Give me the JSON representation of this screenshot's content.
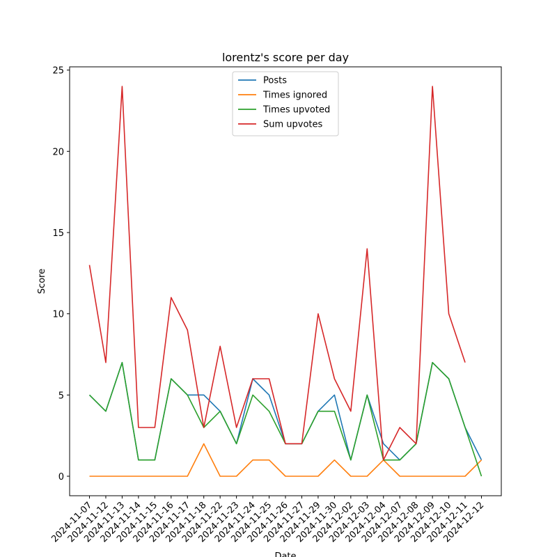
{
  "chart_data": {
    "type": "line",
    "title": "lorentz's score per day",
    "xlabel": "Date",
    "ylabel": "Score",
    "ylim": [
      -1.2,
      25.2
    ],
    "yticks": [
      0,
      5,
      10,
      15,
      20,
      25
    ],
    "grid": false,
    "legend_position": "upper center",
    "categories": [
      "2024-11-07",
      "2024-11-12",
      "2024-11-13",
      "2024-11-14",
      "2024-11-15",
      "2024-11-16",
      "2024-11-17",
      "2024-11-18",
      "2024-11-22",
      "2024-11-23",
      "2024-11-24",
      "2024-11-25",
      "2024-11-26",
      "2024-11-27",
      "2024-11-29",
      "2024-11-30",
      "2024-12-02",
      "2024-12-03",
      "2024-12-04",
      "2024-12-07",
      "2024-12-08",
      "2024-12-09",
      "2024-12-10",
      "2024-12-11",
      "2024-12-12"
    ],
    "series": [
      {
        "name": "Posts",
        "color": "#1f77b4",
        "values": [
          5,
          4,
          7,
          1,
          1,
          6,
          5,
          5,
          4,
          2,
          6,
          5,
          2,
          2,
          4,
          5,
          1,
          5,
          2,
          1,
          2,
          7,
          6,
          3,
          1
        ]
      },
      {
        "name": "Times ignored",
        "color": "#ff7f0e",
        "values": [
          0,
          0,
          0,
          0,
          0,
          0,
          0,
          2,
          0,
          0,
          1,
          1,
          0,
          0,
          0,
          1,
          0,
          0,
          1,
          0,
          0,
          0,
          0,
          0,
          1
        ]
      },
      {
        "name": "Times upvoted",
        "color": "#2ca02c",
        "values": [
          5,
          4,
          7,
          1,
          1,
          6,
          5,
          3,
          4,
          2,
          5,
          4,
          2,
          2,
          4,
          4,
          1,
          5,
          1,
          1,
          2,
          7,
          6,
          3,
          0
        ]
      },
      {
        "name": "Sum upvotes",
        "color": "#d62728",
        "values": [
          13,
          7,
          24,
          3,
          3,
          11,
          9,
          3,
          8,
          3,
          6,
          6,
          2,
          2,
          10,
          6,
          4,
          14,
          1,
          3,
          2,
          24,
          10,
          7,
          null
        ]
      }
    ]
  }
}
